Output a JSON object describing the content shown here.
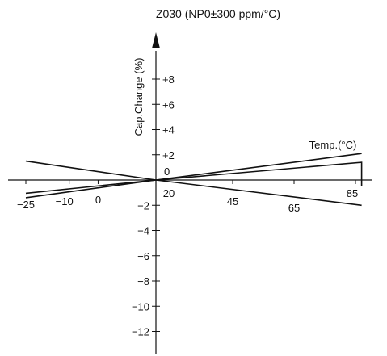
{
  "chart_data": {
    "type": "line",
    "title": "Z030 (NP0±300 ppm/°C)",
    "xlabel": "Temp.(°C)",
    "ylabel": "Cap.Change (%)",
    "x_origin": 20,
    "xlim": [
      -25,
      85
    ],
    "ylim": [
      -12,
      8
    ],
    "xticks": [
      {
        "value": -25,
        "label": "−25"
      },
      {
        "value": -10,
        "label": "−10"
      },
      {
        "value": 0,
        "label": "0"
      },
      {
        "value": 20,
        "label": "20"
      },
      {
        "value": 45,
        "label": "45"
      },
      {
        "value": 65,
        "label": "65"
      },
      {
        "value": 85,
        "label": "85"
      }
    ],
    "yticks": [
      {
        "value": 8,
        "label": "+8"
      },
      {
        "value": 6,
        "label": "+6"
      },
      {
        "value": 4,
        "label": "+4"
      },
      {
        "value": 2,
        "label": "+2"
      },
      {
        "value": 0,
        "label": "0"
      },
      {
        "value": -2,
        "label": "−2"
      },
      {
        "value": -4,
        "label": "−4"
      },
      {
        "value": -6,
        "label": "−6"
      },
      {
        "value": -8,
        "label": "−8"
      },
      {
        "value": -10,
        "label": "−10"
      },
      {
        "value": -12,
        "label": "−12"
      }
    ],
    "series": [
      {
        "x": [
          -25,
          20,
          87
        ],
        "y": [
          1.5,
          0,
          -2.0
        ]
      },
      {
        "x": [
          -25,
          20,
          87
        ],
        "y": [
          -1.4,
          0,
          2.1
        ]
      },
      {
        "x": [
          -25,
          20,
          87,
          87
        ],
        "y": [
          -1.05,
          0,
          1.4,
          -0.5
        ]
      }
    ]
  }
}
